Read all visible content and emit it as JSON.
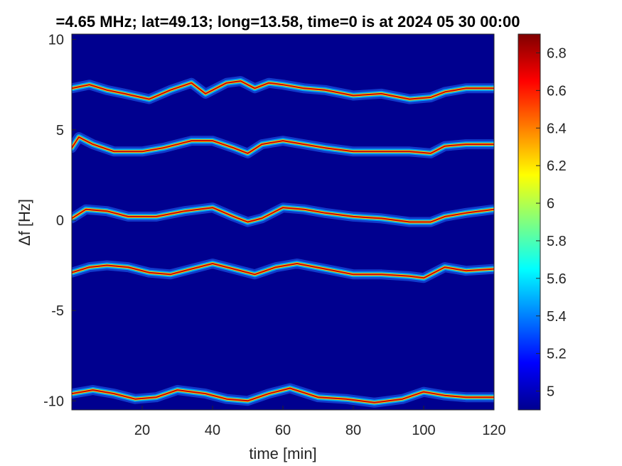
{
  "chart_data": {
    "type": "heatmap",
    "title": "=4.65 MHz;  lat=49.13; long=13.58, time=0 is at 2024 05 30 00:00",
    "xlabel": "time [min]",
    "ylabel": "Δf [Hz]",
    "xlim": [
      0,
      120
    ],
    "ylim": [
      -10.5,
      10.3
    ],
    "xticks": [
      20,
      40,
      60,
      80,
      100,
      120
    ],
    "yticks": [
      -10,
      -5,
      0,
      5,
      10
    ],
    "colormap": "jet",
    "colorbar": {
      "min": 4.9,
      "max": 6.9,
      "ticks": [
        5,
        5.2,
        5.4,
        5.6,
        5.8,
        6,
        6.2,
        6.4,
        6.6,
        6.8
      ]
    },
    "background_value": 4.9,
    "series": [
      {
        "x": [
          0,
          5,
          10,
          15,
          22,
          28,
          34,
          38,
          44,
          48,
          52,
          56,
          60,
          66,
          72,
          80,
          88,
          96,
          102,
          106,
          112,
          120
        ],
        "y": [
          7.3,
          7.5,
          7.2,
          7.0,
          6.7,
          7.2,
          7.6,
          7.0,
          7.6,
          7.7,
          7.3,
          7.6,
          7.5,
          7.3,
          7.2,
          6.9,
          7.0,
          6.7,
          6.8,
          7.1,
          7.3,
          7.3
        ]
      },
      {
        "x": [
          0,
          2,
          6,
          12,
          20,
          26,
          34,
          40,
          46,
          50,
          54,
          60,
          66,
          72,
          80,
          88,
          96,
          102,
          106,
          112,
          120
        ],
        "y": [
          4.0,
          4.6,
          4.2,
          3.8,
          3.8,
          4.0,
          4.4,
          4.4,
          4.0,
          3.7,
          4.2,
          4.4,
          4.2,
          4.0,
          3.8,
          3.8,
          3.8,
          3.7,
          4.1,
          4.2,
          4.2
        ]
      },
      {
        "x": [
          0,
          4,
          10,
          16,
          24,
          32,
          40,
          46,
          50,
          54,
          60,
          66,
          72,
          80,
          88,
          96,
          102,
          106,
          112,
          120
        ],
        "y": [
          0.1,
          0.6,
          0.5,
          0.2,
          0.2,
          0.5,
          0.7,
          0.2,
          -0.1,
          0.1,
          0.7,
          0.6,
          0.4,
          0.2,
          0.1,
          -0.1,
          -0.1,
          0.2,
          0.4,
          0.6
        ]
      },
      {
        "x": [
          0,
          5,
          10,
          16,
          22,
          28,
          34,
          40,
          46,
          52,
          58,
          64,
          72,
          80,
          88,
          96,
          100,
          106,
          112,
          120
        ],
        "y": [
          -2.9,
          -2.6,
          -2.5,
          -2.6,
          -2.9,
          -3.0,
          -2.7,
          -2.4,
          -2.7,
          -3.0,
          -2.6,
          -2.4,
          -2.7,
          -3.0,
          -3.0,
          -3.1,
          -3.2,
          -2.6,
          -2.8,
          -2.7
        ]
      },
      {
        "x": [
          0,
          6,
          12,
          18,
          24,
          30,
          38,
          44,
          50,
          56,
          62,
          70,
          78,
          86,
          94,
          100,
          106,
          112,
          120
        ],
        "y": [
          -9.6,
          -9.4,
          -9.6,
          -9.9,
          -9.8,
          -9.4,
          -9.6,
          -9.9,
          -10.0,
          -9.6,
          -9.3,
          -9.8,
          -9.9,
          -10.1,
          -9.9,
          -9.5,
          -9.7,
          -9.8,
          -9.8
        ]
      }
    ]
  }
}
